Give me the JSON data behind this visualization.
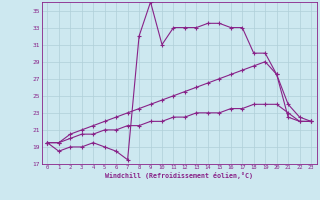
{
  "xlabel": "Windchill (Refroidissement éolien,°C)",
  "background_color": "#cde8f0",
  "grid_color": "#b0cfd8",
  "line_color": "#882288",
  "xlim": [
    -0.5,
    23.5
  ],
  "ylim": [
    17,
    36
  ],
  "yticks": [
    17,
    19,
    21,
    23,
    25,
    27,
    29,
    31,
    33,
    35
  ],
  "xticks": [
    0,
    1,
    2,
    3,
    4,
    5,
    6,
    7,
    8,
    9,
    10,
    11,
    12,
    13,
    14,
    15,
    16,
    17,
    18,
    19,
    20,
    21,
    22,
    23
  ],
  "series1_x": [
    0,
    1,
    2,
    3,
    4,
    5,
    6,
    7,
    8,
    9,
    10,
    11,
    12,
    13,
    14,
    15,
    16,
    17,
    18,
    19,
    20,
    21,
    22,
    23
  ],
  "series1_y": [
    19.5,
    18.5,
    19.0,
    19.0,
    19.5,
    19.0,
    18.5,
    17.5,
    32.0,
    36.0,
    31.0,
    33.0,
    33.0,
    33.0,
    33.5,
    33.5,
    33.0,
    33.0,
    30.0,
    30.0,
    27.5,
    22.5,
    22.0,
    22.0
  ],
  "series2_x": [
    0,
    1,
    2,
    3,
    4,
    5,
    6,
    7,
    8,
    9,
    10,
    11,
    12,
    13,
    14,
    15,
    16,
    17,
    18,
    19,
    20,
    21,
    22,
    23
  ],
  "series2_y": [
    19.5,
    19.5,
    20.5,
    21.0,
    21.5,
    22.0,
    22.5,
    23.0,
    23.5,
    24.0,
    24.5,
    25.0,
    25.5,
    26.0,
    26.5,
    27.0,
    27.5,
    28.0,
    28.5,
    29.0,
    27.5,
    24.0,
    22.5,
    22.0
  ],
  "series3_x": [
    0,
    1,
    2,
    3,
    4,
    5,
    6,
    7,
    8,
    9,
    10,
    11,
    12,
    13,
    14,
    15,
    16,
    17,
    18,
    19,
    20,
    21,
    22,
    23
  ],
  "series3_y": [
    19.5,
    19.5,
    20.0,
    20.5,
    20.5,
    21.0,
    21.0,
    21.5,
    21.5,
    22.0,
    22.0,
    22.5,
    22.5,
    23.0,
    23.0,
    23.0,
    23.5,
    23.5,
    24.0,
    24.0,
    24.0,
    23.0,
    22.0,
    22.0
  ]
}
